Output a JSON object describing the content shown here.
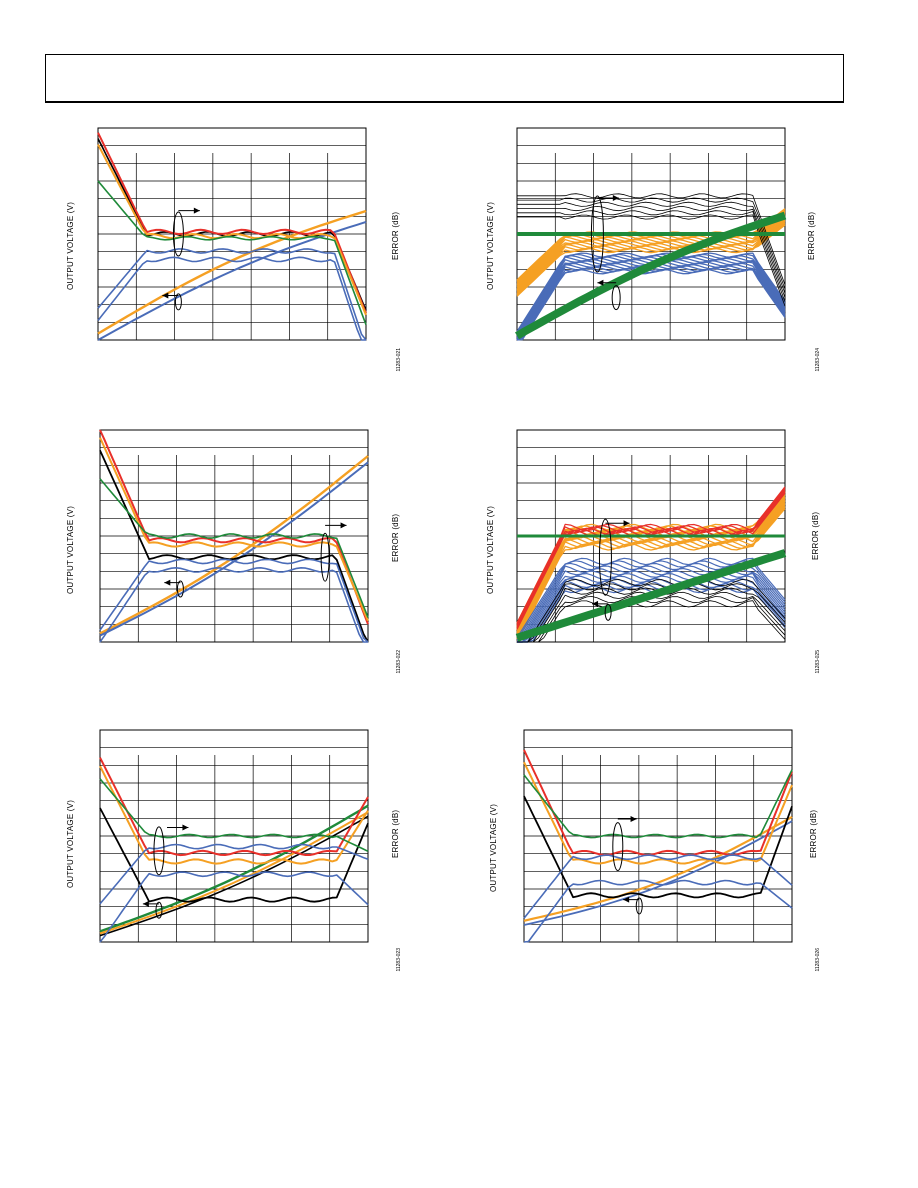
{
  "page": {
    "header_text": ""
  },
  "chart_data": [
    {
      "id": "TPC-21",
      "type": "line",
      "title": "",
      "ylabel_left": "OUTPUT VOLTAGE (V)",
      "ylabel_right": "ERROR (dB)",
      "figure_id": "11283-021",
      "series_colors": [
        "#000000",
        "#e8302a",
        "#f5a023",
        "#1f8a3a",
        "#4a6cb8"
      ],
      "grid": true,
      "multi_trace": false
    },
    {
      "id": "TPC-24",
      "type": "line",
      "title": "",
      "ylabel_left": "OUTPUT VOLTAGE (V)",
      "ylabel_right": "ERROR (dB)",
      "figure_id": "11283-024",
      "series_colors": [
        "#000000",
        "#f5a023",
        "#4a6cb8",
        "#1f8a3a"
      ],
      "grid": true,
      "multi_trace": true
    },
    {
      "id": "TPC-22",
      "type": "line",
      "title": "",
      "ylabel_left": "OUTPUT VOLTAGE (V)",
      "ylabel_right": "ERROR (dB)",
      "figure_id": "11283-022",
      "series_colors": [
        "#000000",
        "#e8302a",
        "#f5a023",
        "#1f8a3a",
        "#4a6cb8"
      ],
      "grid": true,
      "multi_trace": false
    },
    {
      "id": "TPC-25",
      "type": "line",
      "title": "",
      "ylabel_left": "OUTPUT VOLTAGE (V)",
      "ylabel_right": "ERROR (dB)",
      "figure_id": "11283-025",
      "series_colors": [
        "#000000",
        "#e8302a",
        "#f5a023",
        "#4a6cb8",
        "#1f8a3a"
      ],
      "grid": true,
      "multi_trace": true
    },
    {
      "id": "TPC-23",
      "type": "line",
      "title": "",
      "ylabel_left": "OUTPUT VOLTAGE (V)",
      "ylabel_right": "ERROR (dB)",
      "figure_id": "11283-023",
      "series_colors": [
        "#000000",
        "#e8302a",
        "#f5a023",
        "#1f8a3a",
        "#4a6cb8"
      ],
      "grid": true,
      "multi_trace": false
    },
    {
      "id": "TPC-26",
      "type": "line",
      "title": "",
      "ylabel_left": "OUTPUT VOLTAGE (V)",
      "ylabel_right": "ERROR (dB)",
      "figure_id": "11283-026",
      "series_colors": [
        "#000000",
        "#e8302a",
        "#f5a023",
        "#1f8a3a",
        "#4a6cb8"
      ],
      "grid": true,
      "multi_trace": false
    }
  ]
}
